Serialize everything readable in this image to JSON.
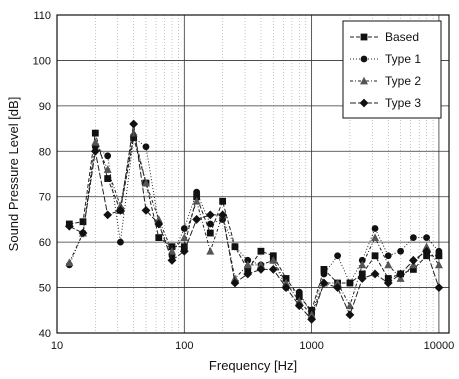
{
  "chart_data": {
    "type": "line",
    "title": "",
    "xlabel": "Frequency [Hz]",
    "ylabel": "Sound Pressure Level  [dB]",
    "xscale": "log",
    "xlim": [
      10,
      12000
    ],
    "ylim": [
      40,
      110
    ],
    "x_tick_labels": [
      "10",
      "100",
      "1000",
      "10000"
    ],
    "y_tick_labels": [
      "40",
      "50",
      "60",
      "70",
      "80",
      "90",
      "100",
      "110"
    ],
    "grid": true,
    "legend_position": "top-right",
    "x": [
      12.5,
      16,
      20,
      25,
      31.5,
      40,
      50,
      63,
      80,
      100,
      125,
      160,
      200,
      250,
      315,
      400,
      500,
      630,
      800,
      1000,
      1250,
      1600,
      2000,
      2500,
      3150,
      4000,
      5000,
      6300,
      8000,
      10000
    ],
    "series": [
      {
        "name": "Based",
        "marker": "square",
        "dash": "4,2",
        "values": [
          64,
          64.5,
          84,
          74,
          67,
          83,
          73,
          61,
          59,
          59,
          70,
          62,
          69,
          59,
          54,
          58,
          57,
          52,
          48,
          45,
          54,
          51,
          51,
          53,
          57,
          52,
          53,
          54,
          57,
          57
        ]
      },
      {
        "name": "Type 1",
        "marker": "circle",
        "dash": "1,2",
        "values": [
          55,
          62,
          81,
          79,
          60,
          83,
          81,
          64,
          57,
          63,
          71,
          64,
          65,
          59,
          56,
          55,
          56,
          50,
          49,
          44,
          53,
          57,
          51,
          56,
          63,
          57,
          58,
          61,
          61,
          58
        ]
      },
      {
        "name": "Type 2",
        "marker": "triangle",
        "dash": "3,2,1,2",
        "values": [
          55.5,
          62,
          82,
          76,
          68,
          84,
          73,
          65,
          58,
          61,
          69,
          58,
          66,
          52,
          55,
          55,
          56,
          51,
          47,
          44,
          51,
          51,
          46,
          55,
          61,
          55,
          52,
          55,
          59,
          55
        ]
      },
      {
        "name": "Type 3",
        "marker": "diamond",
        "dash": "6,2",
        "values": [
          63.5,
          62,
          80,
          66,
          67,
          86,
          67,
          64,
          56,
          58,
          65,
          66,
          66,
          51,
          53,
          54,
          54,
          50,
          46,
          43,
          51,
          50,
          44,
          52,
          53,
          51,
          53,
          56,
          58,
          50
        ]
      }
    ]
  }
}
